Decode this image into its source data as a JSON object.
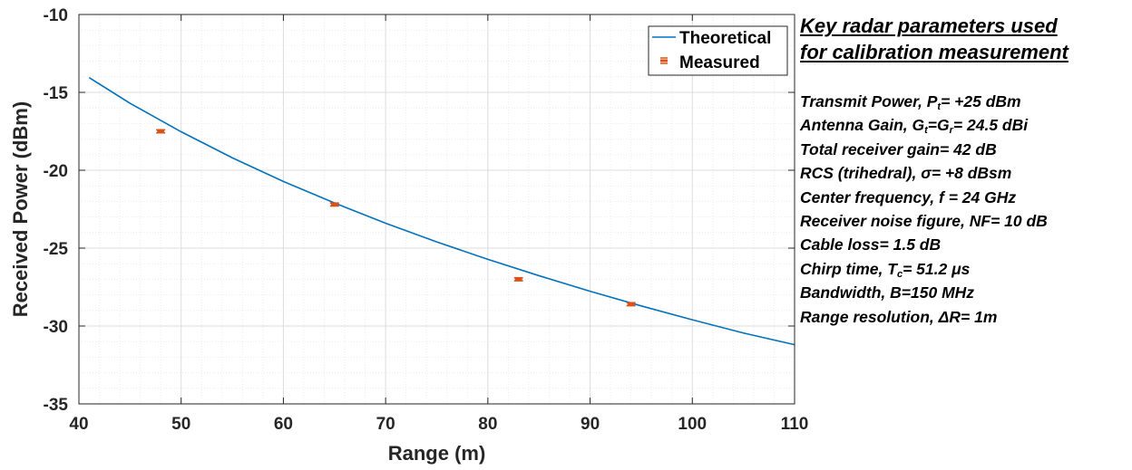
{
  "chart_data": {
    "type": "line",
    "xlabel": "Range (m)",
    "ylabel": "Received Power (dBm)",
    "xlim": [
      40,
      110
    ],
    "ylim": [
      -35,
      -10
    ],
    "xticks": [
      "40",
      "50",
      "60",
      "70",
      "80",
      "90",
      "100",
      "110"
    ],
    "yticks": [
      "-10",
      "-15",
      "-20",
      "-25",
      "-30",
      "-35"
    ],
    "grid": true,
    "legend_position": "top-right",
    "series": [
      {
        "name": "Theoretical",
        "style": "line",
        "color": "#0072BD",
        "x": [
          41,
          45,
          50,
          55,
          60,
          65,
          70,
          75,
          80,
          85,
          90,
          95,
          100,
          105,
          110
        ],
        "y": [
          -14.05,
          -15.7,
          -17.53,
          -19.2,
          -20.72,
          -22.1,
          -23.4,
          -24.6,
          -25.72,
          -26.77,
          -27.77,
          -28.71,
          -29.6,
          -30.45,
          -31.2
        ]
      },
      {
        "name": "Measured",
        "style": "errorbar",
        "color": "#D95319",
        "x": [
          48,
          65,
          83,
          94
        ],
        "y": [
          -17.5,
          -22.2,
          -27.0,
          -28.6
        ],
        "err": [
          0.1,
          0.1,
          0.1,
          0.1
        ]
      }
    ]
  },
  "panel": {
    "heading_line1": "Key radar parameters used",
    "heading_line2": "for calibration measurement",
    "params": [
      {
        "pre": "Transmit Power, P",
        "sub1": "t",
        "mid": "",
        "sub2": "",
        "post": "= +25 dBm"
      },
      {
        "pre": "Antenna Gain, G",
        "sub1": "t",
        "mid": "=G",
        "sub2": "r",
        "post": "= 24.5 dBi"
      },
      {
        "pre": "Total receiver gain= 42 dB",
        "sub1": "",
        "mid": "",
        "sub2": "",
        "post": ""
      },
      {
        "pre": "RCS (trihedral), σ= +8 dBsm",
        "sub1": "",
        "mid": "",
        "sub2": "",
        "post": ""
      },
      {
        "pre": "Center frequency, f = 24 GHz",
        "sub1": "",
        "mid": "",
        "sub2": "",
        "post": ""
      },
      {
        "pre": "Receiver noise figure, NF= 10 dB",
        "sub1": "",
        "mid": "",
        "sub2": "",
        "post": ""
      },
      {
        "pre": "Cable loss= 1.5 dB",
        "sub1": "",
        "mid": "",
        "sub2": "",
        "post": ""
      },
      {
        "pre": "Chirp time, T",
        "sub1": "c",
        "mid": "",
        "sub2": "",
        "post": "= 51.2 μs"
      },
      {
        "pre": "Bandwidth, B=150 MHz",
        "sub1": "",
        "mid": "",
        "sub2": "",
        "post": ""
      },
      {
        "pre": "Range resolution, ΔR= 1m",
        "sub1": "",
        "mid": "",
        "sub2": "",
        "post": ""
      }
    ]
  }
}
